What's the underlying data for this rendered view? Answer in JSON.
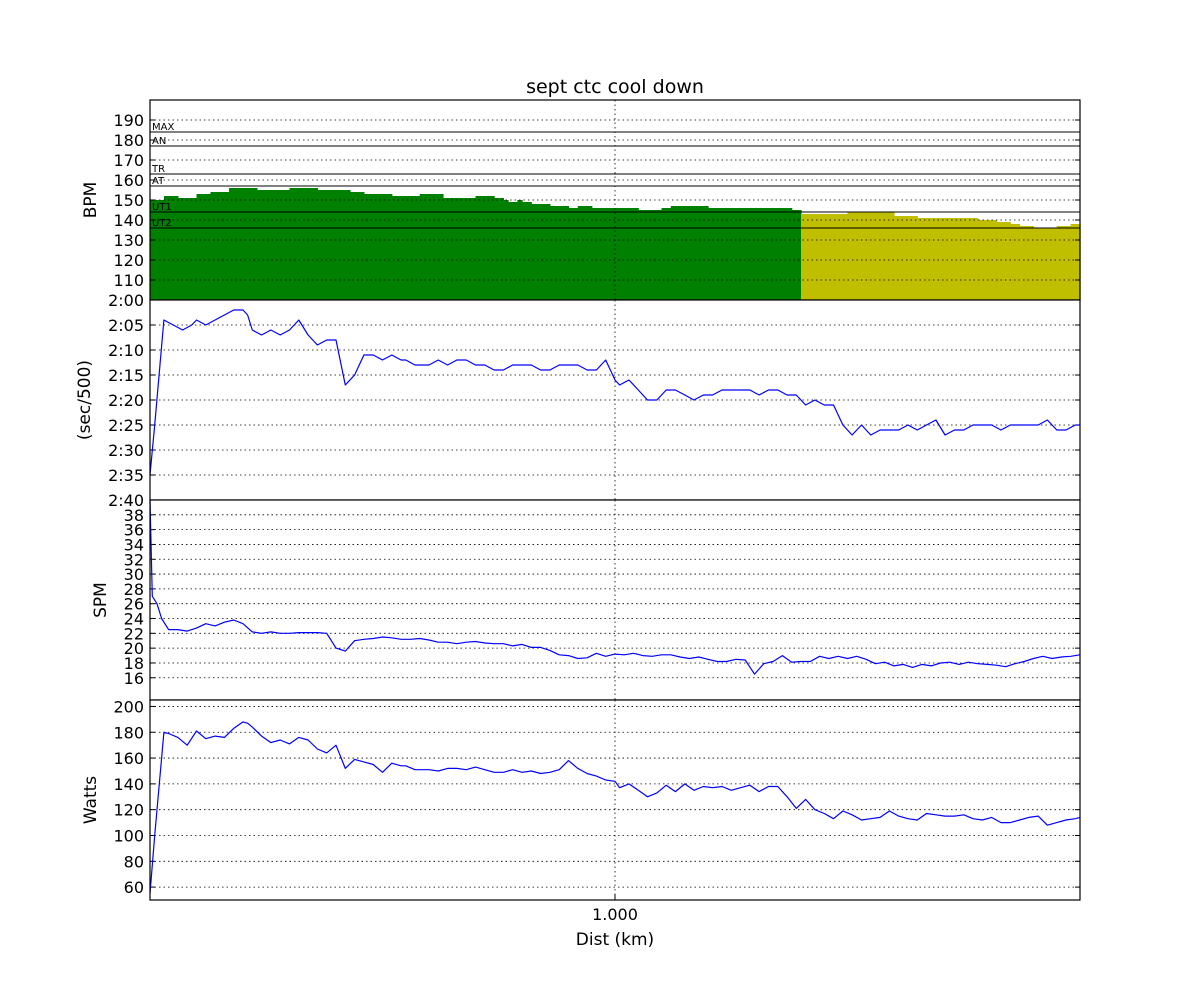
{
  "chart_data": {
    "title": "sept ctc cool down",
    "xlabel": "Dist (km)",
    "x_ticks": [
      {
        "value": 1.0,
        "label": "1.000"
      }
    ],
    "xlim": [
      0,
      2.0
    ],
    "panels": [
      {
        "id": "bpm",
        "type": "area",
        "ylabel": "BPM",
        "ylim": [
          100,
          200
        ],
        "yticks": [
          110,
          120,
          130,
          140,
          150,
          160,
          170,
          180,
          190
        ],
        "ytick_labels": [
          "110",
          "120",
          "130",
          "140",
          "150",
          "160",
          "170",
          "180",
          "190"
        ],
        "zones": [
          {
            "label": "MAX",
            "value": 184
          },
          {
            "label": "AN",
            "value": 177
          },
          {
            "label": "TR",
            "value": 163
          },
          {
            "label": "AT",
            "value": 157
          },
          {
            "label": "UT1",
            "value": 144
          },
          {
            "label": "UT2",
            "value": 136
          }
        ],
        "split_x": 1.4,
        "colors": {
          "before": "#008000",
          "after": "#bfbf00"
        },
        "x": [
          0.0,
          0.03,
          0.06,
          0.1,
          0.13,
          0.17,
          0.23,
          0.3,
          0.36,
          0.43,
          0.46,
          0.52,
          0.58,
          0.63,
          0.7,
          0.74,
          0.76,
          0.77,
          0.79,
          0.8,
          0.82,
          0.86,
          0.9,
          0.92,
          0.95,
          1.0,
          1.05,
          1.1,
          1.12,
          1.2,
          1.3,
          1.38,
          1.4,
          1.45,
          1.5,
          1.6,
          1.65,
          1.7,
          1.78,
          1.82,
          1.85,
          1.87,
          1.9,
          1.95,
          1.98,
          2.0
        ],
        "values": [
          150,
          152,
          151,
          153,
          154,
          156,
          155,
          156,
          155,
          154,
          153,
          152,
          153,
          151,
          152,
          151,
          150,
          149,
          150,
          149,
          148,
          147,
          146,
          147,
          146,
          146,
          145,
          146,
          147,
          146,
          146,
          145,
          143,
          143,
          144,
          142,
          141,
          141,
          140,
          139,
          138,
          137,
          136,
          137,
          138,
          139
        ]
      },
      {
        "id": "pace",
        "type": "line",
        "ylabel": "(sec/500)",
        "ylim": [
          160,
          120
        ],
        "yticks": [
          120,
          125,
          130,
          135,
          140,
          145,
          150,
          155,
          160
        ],
        "ytick_labels": [
          "2:00",
          "2:05",
          "2:10",
          "2:15",
          "2:20",
          "2:25",
          "2:30",
          "2:35",
          "2:40"
        ],
        "color": "#0000ff",
        "x": [
          0.0,
          0.01,
          0.03,
          0.05,
          0.07,
          0.09,
          0.1,
          0.12,
          0.14,
          0.16,
          0.18,
          0.2,
          0.21,
          0.22,
          0.24,
          0.26,
          0.28,
          0.3,
          0.32,
          0.34,
          0.36,
          0.38,
          0.4,
          0.42,
          0.44,
          0.46,
          0.48,
          0.5,
          0.52,
          0.54,
          0.55,
          0.57,
          0.6,
          0.62,
          0.64,
          0.66,
          0.68,
          0.7,
          0.72,
          0.74,
          0.76,
          0.78,
          0.8,
          0.82,
          0.84,
          0.86,
          0.88,
          0.9,
          0.92,
          0.94,
          0.96,
          0.98,
          1.0,
          1.01,
          1.03,
          1.05,
          1.07,
          1.09,
          1.11,
          1.13,
          1.15,
          1.17,
          1.19,
          1.21,
          1.23,
          1.25,
          1.27,
          1.29,
          1.31,
          1.33,
          1.35,
          1.37,
          1.39,
          1.41,
          1.43,
          1.45,
          1.47,
          1.49,
          1.51,
          1.53,
          1.55,
          1.57,
          1.59,
          1.61,
          1.63,
          1.65,
          1.67,
          1.69,
          1.71,
          1.73,
          1.75,
          1.77,
          1.79,
          1.81,
          1.83,
          1.85,
          1.87,
          1.89,
          1.91,
          1.93,
          1.95,
          1.97,
          1.99,
          2.0
        ],
        "values": [
          155,
          145,
          124,
          125,
          126,
          125,
          124,
          125,
          124,
          123,
          122,
          122,
          123,
          126,
          127,
          126,
          127,
          126,
          124,
          127,
          129,
          128,
          128,
          137,
          135,
          131,
          131,
          132,
          131,
          132,
          132,
          133,
          133,
          132,
          133,
          132,
          132,
          133,
          133,
          134,
          134,
          133,
          133,
          133,
          134,
          134,
          133,
          133,
          133,
          134,
          134,
          132,
          136,
          137,
          136,
          138,
          140,
          140,
          138,
          138,
          139,
          140,
          139,
          139,
          138,
          138,
          138,
          138,
          139,
          138,
          138,
          139,
          139,
          141,
          140,
          141,
          141,
          145,
          147,
          145,
          147,
          146,
          146,
          146,
          145,
          146,
          145,
          144,
          147,
          146,
          146,
          145,
          145,
          145,
          146,
          145,
          145,
          145,
          145,
          144,
          146,
          146,
          145,
          145
        ]
      },
      {
        "id": "spm",
        "type": "line",
        "ylabel": "SPM",
        "ylim": [
          13,
          40
        ],
        "yticks": [
          16,
          18,
          20,
          22,
          24,
          26,
          28,
          30,
          32,
          34,
          36,
          38
        ],
        "ytick_labels": [
          "16",
          "18",
          "20",
          "22",
          "24",
          "26",
          "28",
          "30",
          "32",
          "34",
          "36",
          "38"
        ],
        "color": "#0000ff",
        "x": [
          0.0,
          0.005,
          0.015,
          0.025,
          0.04,
          0.06,
          0.08,
          0.1,
          0.12,
          0.14,
          0.16,
          0.18,
          0.2,
          0.22,
          0.24,
          0.26,
          0.28,
          0.3,
          0.32,
          0.34,
          0.36,
          0.38,
          0.4,
          0.42,
          0.44,
          0.46,
          0.48,
          0.5,
          0.52,
          0.54,
          0.56,
          0.58,
          0.6,
          0.62,
          0.64,
          0.66,
          0.68,
          0.7,
          0.72,
          0.74,
          0.76,
          0.78,
          0.8,
          0.82,
          0.84,
          0.86,
          0.88,
          0.9,
          0.92,
          0.94,
          0.96,
          0.98,
          1.0,
          1.02,
          1.04,
          1.06,
          1.08,
          1.1,
          1.12,
          1.14,
          1.16,
          1.18,
          1.2,
          1.22,
          1.24,
          1.26,
          1.28,
          1.3,
          1.32,
          1.34,
          1.36,
          1.38,
          1.4,
          1.42,
          1.44,
          1.46,
          1.48,
          1.5,
          1.52,
          1.54,
          1.56,
          1.58,
          1.6,
          1.62,
          1.64,
          1.66,
          1.68,
          1.7,
          1.72,
          1.74,
          1.76,
          1.78,
          1.8,
          1.82,
          1.84,
          1.86,
          1.88,
          1.9,
          1.92,
          1.94,
          1.96,
          1.98,
          2.0
        ],
        "values": [
          40,
          27,
          26,
          24,
          22.5,
          22.5,
          22.3,
          22.7,
          23.3,
          23,
          23.5,
          23.8,
          23.3,
          22.2,
          22,
          22.2,
          22,
          22,
          22.1,
          22.1,
          22.1,
          22,
          20,
          19.6,
          21,
          21.2,
          21.3,
          21.5,
          21.4,
          21.2,
          21.2,
          21.3,
          21.1,
          20.8,
          20.8,
          20.6,
          20.8,
          20.9,
          20.7,
          20.6,
          20.6,
          20.3,
          20.5,
          20.1,
          20.1,
          19.7,
          19.1,
          19.0,
          18.6,
          18.7,
          19.3,
          18.9,
          19.2,
          19.1,
          19.3,
          19.0,
          18.9,
          19.1,
          19.1,
          18.8,
          18.6,
          18.8,
          18.5,
          18.2,
          18.2,
          18.5,
          18.4,
          16.5,
          17.9,
          18.2,
          19.0,
          18.1,
          18.2,
          18.2,
          18.9,
          18.6,
          18.9,
          18.6,
          18.9,
          18.5,
          17.9,
          18.1,
          17.6,
          17.8,
          17.4,
          17.8,
          17.6,
          18.0,
          18.1,
          17.8,
          18.1,
          17.9,
          17.8,
          17.7,
          17.5,
          17.9,
          18.2,
          18.6,
          18.9,
          18.6,
          18.8,
          18.9,
          19.1
        ]
      },
      {
        "id": "watts",
        "type": "line",
        "ylabel": "Watts",
        "ylim": [
          50,
          205
        ],
        "yticks": [
          60,
          80,
          100,
          120,
          140,
          160,
          180,
          200
        ],
        "ytick_labels": [
          "60",
          "80",
          "100",
          "120",
          "140",
          "160",
          "180",
          "200"
        ],
        "color": "#0000ff",
        "x": [
          0.0,
          0.01,
          0.03,
          0.04,
          0.06,
          0.08,
          0.1,
          0.12,
          0.14,
          0.16,
          0.18,
          0.2,
          0.21,
          0.22,
          0.24,
          0.26,
          0.28,
          0.3,
          0.32,
          0.34,
          0.36,
          0.38,
          0.4,
          0.42,
          0.44,
          0.46,
          0.48,
          0.5,
          0.52,
          0.54,
          0.55,
          0.57,
          0.6,
          0.62,
          0.64,
          0.66,
          0.68,
          0.7,
          0.72,
          0.74,
          0.76,
          0.78,
          0.8,
          0.82,
          0.84,
          0.86,
          0.88,
          0.9,
          0.92,
          0.94,
          0.96,
          0.98,
          1.0,
          1.01,
          1.03,
          1.05,
          1.07,
          1.09,
          1.11,
          1.13,
          1.15,
          1.17,
          1.19,
          1.21,
          1.23,
          1.25,
          1.27,
          1.29,
          1.31,
          1.33,
          1.35,
          1.37,
          1.39,
          1.41,
          1.43,
          1.45,
          1.47,
          1.49,
          1.51,
          1.53,
          1.55,
          1.57,
          1.59,
          1.61,
          1.63,
          1.65,
          1.67,
          1.69,
          1.71,
          1.73,
          1.75,
          1.77,
          1.79,
          1.81,
          1.83,
          1.85,
          1.87,
          1.89,
          1.91,
          1.93,
          1.95,
          1.97,
          1.99,
          2.0
        ],
        "values": [
          55,
          100,
          180,
          179,
          176,
          170,
          181,
          175,
          177,
          176,
          183,
          188,
          187,
          184,
          177,
          172,
          174,
          171,
          176,
          174,
          167,
          164,
          170,
          152,
          159,
          157,
          155,
          149,
          156,
          154,
          154,
          151,
          151,
          150,
          152,
          152,
          151,
          153,
          151,
          149,
          149,
          151,
          149,
          150,
          148,
          149,
          151,
          158,
          152,
          148,
          146,
          143,
          142,
          137,
          140,
          135,
          130,
          133,
          139,
          134,
          140,
          135,
          138,
          137,
          138,
          135,
          137,
          139,
          134,
          138,
          138,
          130,
          121,
          128,
          120,
          117,
          113,
          119,
          116,
          112,
          113,
          114,
          119,
          115,
          113,
          112,
          117,
          116,
          115,
          115,
          116,
          113,
          112,
          114,
          110,
          110,
          112,
          114,
          115,
          108,
          110,
          112,
          113,
          114
        ]
      }
    ]
  }
}
